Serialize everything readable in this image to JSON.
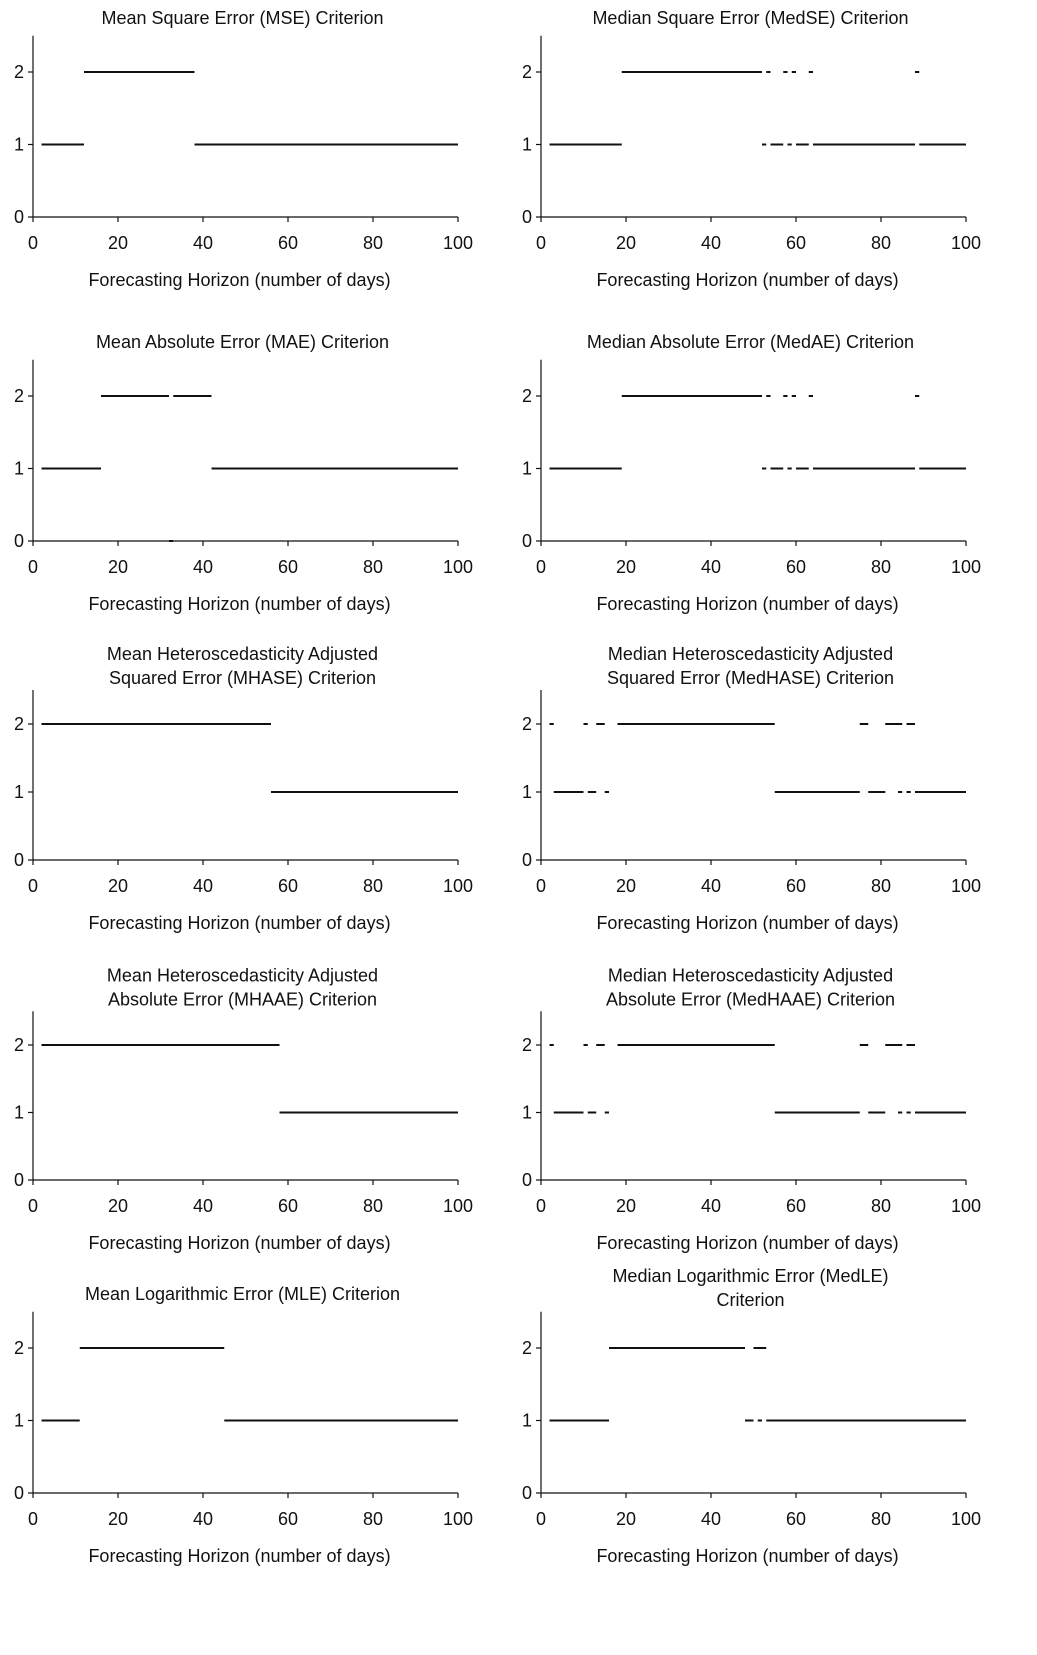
{
  "figure": {
    "xlabel": "Forecasting Horizon (number of days)",
    "x_ticks": [
      "0",
      "20",
      "40",
      "60",
      "80",
      "100"
    ],
    "y_ticks": [
      "0",
      "1",
      "2"
    ]
  },
  "chart_data": [
    {
      "type": "line",
      "title": [
        "Mean Square Error (MSE) Criterion"
      ],
      "xlabel": "Forecasting Horizon (number of days)",
      "ylabel": "",
      "xlim": [
        0,
        100
      ],
      "ylim": [
        0,
        2.5
      ],
      "segments": [
        {
          "x": [
            2,
            12
          ],
          "y": 1
        },
        {
          "x": [
            12,
            38
          ],
          "y": 2
        },
        {
          "x": [
            38,
            100
          ],
          "y": 1
        }
      ]
    },
    {
      "type": "line",
      "title": [
        "Median Square Error (MedSE) Criterion"
      ],
      "xlabel": "Forecasting Horizon (number of days)",
      "ylabel": "",
      "xlim": [
        0,
        100
      ],
      "ylim": [
        0,
        2.5
      ],
      "segments": [
        {
          "x": [
            2,
            19
          ],
          "y": 1
        },
        {
          "x": [
            19,
            52
          ],
          "y": 2
        },
        {
          "x": [
            53,
            54
          ],
          "y": 2
        },
        {
          "x": [
            57,
            58
          ],
          "y": 2
        },
        {
          "x": [
            59,
            60
          ],
          "y": 2
        },
        {
          "x": [
            63,
            64
          ],
          "y": 2
        },
        {
          "x": [
            88,
            89
          ],
          "y": 2
        },
        {
          "x": [
            52,
            53
          ],
          "y": 1
        },
        {
          "x": [
            54,
            57
          ],
          "y": 1
        },
        {
          "x": [
            58,
            59
          ],
          "y": 1
        },
        {
          "x": [
            60,
            63
          ],
          "y": 1
        },
        {
          "x": [
            64,
            88
          ],
          "y": 1
        },
        {
          "x": [
            89,
            100
          ],
          "y": 1
        }
      ]
    },
    {
      "type": "line",
      "title": [
        "Mean Absolute Error (MAE) Criterion"
      ],
      "xlabel": "Forecasting Horizon (number of days)",
      "ylabel": "",
      "xlim": [
        0,
        100
      ],
      "ylim": [
        0,
        2.5
      ],
      "segments": [
        {
          "x": [
            2,
            16
          ],
          "y": 1
        },
        {
          "x": [
            16,
            32
          ],
          "y": 2
        },
        {
          "x": [
            32,
            33
          ],
          "y": 0
        },
        {
          "x": [
            33,
            42
          ],
          "y": 2
        },
        {
          "x": [
            42,
            100
          ],
          "y": 1
        }
      ]
    },
    {
      "type": "line",
      "title": [
        "Median Absolute Error (MedAE) Criterion"
      ],
      "xlabel": "Forecasting Horizon (number of days)",
      "ylabel": "",
      "xlim": [
        0,
        100
      ],
      "ylim": [
        0,
        2.5
      ],
      "segments": [
        {
          "x": [
            2,
            19
          ],
          "y": 1
        },
        {
          "x": [
            19,
            52
          ],
          "y": 2
        },
        {
          "x": [
            53,
            54
          ],
          "y": 2
        },
        {
          "x": [
            57,
            58
          ],
          "y": 2
        },
        {
          "x": [
            59,
            60
          ],
          "y": 2
        },
        {
          "x": [
            63,
            64
          ],
          "y": 2
        },
        {
          "x": [
            88,
            89
          ],
          "y": 2
        },
        {
          "x": [
            52,
            53
          ],
          "y": 1
        },
        {
          "x": [
            54,
            57
          ],
          "y": 1
        },
        {
          "x": [
            58,
            59
          ],
          "y": 1
        },
        {
          "x": [
            60,
            63
          ],
          "y": 1
        },
        {
          "x": [
            64,
            88
          ],
          "y": 1
        },
        {
          "x": [
            89,
            100
          ],
          "y": 1
        }
      ]
    },
    {
      "type": "line",
      "title": [
        "Mean Heteroscedasticity Adjusted",
        "Squared Error (MHASE) Criterion"
      ],
      "xlabel": "Forecasting Horizon (number of days)",
      "ylabel": "",
      "xlim": [
        0,
        100
      ],
      "ylim": [
        0,
        2.5
      ],
      "segments": [
        {
          "x": [
            2,
            56
          ],
          "y": 2
        },
        {
          "x": [
            56,
            100
          ],
          "y": 1
        }
      ]
    },
    {
      "type": "line",
      "title": [
        "Median Heteroscedasticity Adjusted",
        "Squared Error (MedHASE) Criterion"
      ],
      "xlabel": "Forecasting Horizon (number of days)",
      "ylabel": "",
      "xlim": [
        0,
        100
      ],
      "ylim": [
        0,
        2.5
      ],
      "segments": [
        {
          "x": [
            2,
            3
          ],
          "y": 2
        },
        {
          "x": [
            10,
            11
          ],
          "y": 2
        },
        {
          "x": [
            13,
            15
          ],
          "y": 2
        },
        {
          "x": [
            18,
            55
          ],
          "y": 2
        },
        {
          "x": [
            75,
            77
          ],
          "y": 2
        },
        {
          "x": [
            81,
            85
          ],
          "y": 2
        },
        {
          "x": [
            86,
            88
          ],
          "y": 2
        },
        {
          "x": [
            3,
            10
          ],
          "y": 1
        },
        {
          "x": [
            11,
            13
          ],
          "y": 1
        },
        {
          "x": [
            15,
            16
          ],
          "y": 1
        },
        {
          "x": [
            55,
            75
          ],
          "y": 1
        },
        {
          "x": [
            77,
            81
          ],
          "y": 1
        },
        {
          "x": [
            84,
            85
          ],
          "y": 1
        },
        {
          "x": [
            86,
            87
          ],
          "y": 1
        },
        {
          "x": [
            88,
            100
          ],
          "y": 1
        }
      ]
    },
    {
      "type": "line",
      "title": [
        "Mean Heteroscedasticity Adjusted",
        "Absolute Error (MHAAE) Criterion"
      ],
      "xlabel": "Forecasting Horizon (number of days)",
      "ylabel": "",
      "xlim": [
        0,
        100
      ],
      "ylim": [
        0,
        2.5
      ],
      "segments": [
        {
          "x": [
            2,
            58
          ],
          "y": 2
        },
        {
          "x": [
            58,
            100
          ],
          "y": 1
        }
      ]
    },
    {
      "type": "line",
      "title": [
        "Median Heteroscedasticity Adjusted",
        "Absolute Error (MedHAAE) Criterion"
      ],
      "xlabel": "Forecasting Horizon (number of days)",
      "ylabel": "",
      "xlim": [
        0,
        100
      ],
      "ylim": [
        0,
        2.5
      ],
      "segments": [
        {
          "x": [
            2,
            3
          ],
          "y": 2
        },
        {
          "x": [
            10,
            11
          ],
          "y": 2
        },
        {
          "x": [
            13,
            15
          ],
          "y": 2
        },
        {
          "x": [
            18,
            55
          ],
          "y": 2
        },
        {
          "x": [
            75,
            77
          ],
          "y": 2
        },
        {
          "x": [
            81,
            85
          ],
          "y": 2
        },
        {
          "x": [
            86,
            88
          ],
          "y": 2
        },
        {
          "x": [
            3,
            10
          ],
          "y": 1
        },
        {
          "x": [
            11,
            13
          ],
          "y": 1
        },
        {
          "x": [
            15,
            16
          ],
          "y": 1
        },
        {
          "x": [
            55,
            75
          ],
          "y": 1
        },
        {
          "x": [
            77,
            81
          ],
          "y": 1
        },
        {
          "x": [
            84,
            85
          ],
          "y": 1
        },
        {
          "x": [
            86,
            87
          ],
          "y": 1
        },
        {
          "x": [
            88,
            100
          ],
          "y": 1
        }
      ]
    },
    {
      "type": "line",
      "title": [
        "Mean Logarithmic Error (MLE) Criterion"
      ],
      "xlabel": "Forecasting Horizon (number of days)",
      "ylabel": "",
      "xlim": [
        0,
        100
      ],
      "ylim": [
        0,
        2.5
      ],
      "segments": [
        {
          "x": [
            2,
            11
          ],
          "y": 1
        },
        {
          "x": [
            11,
            45
          ],
          "y": 2
        },
        {
          "x": [
            45,
            100
          ],
          "y": 1
        }
      ]
    },
    {
      "type": "line",
      "title": [
        "Median Logarithmic Error (MedLE)",
        "Criterion"
      ],
      "xlabel": "Forecasting Horizon (number of days)",
      "ylabel": "",
      "xlim": [
        0,
        100
      ],
      "ylim": [
        0,
        2.5
      ],
      "segments": [
        {
          "x": [
            2,
            16
          ],
          "y": 1
        },
        {
          "x": [
            16,
            48
          ],
          "y": 2
        },
        {
          "x": [
            50,
            52
          ],
          "y": 2
        },
        {
          "x": [
            52,
            53
          ],
          "y": 2
        },
        {
          "x": [
            48,
            50
          ],
          "y": 1
        },
        {
          "x": [
            51,
            52
          ],
          "y": 1
        },
        {
          "x": [
            53,
            100
          ],
          "y": 1
        }
      ]
    }
  ]
}
